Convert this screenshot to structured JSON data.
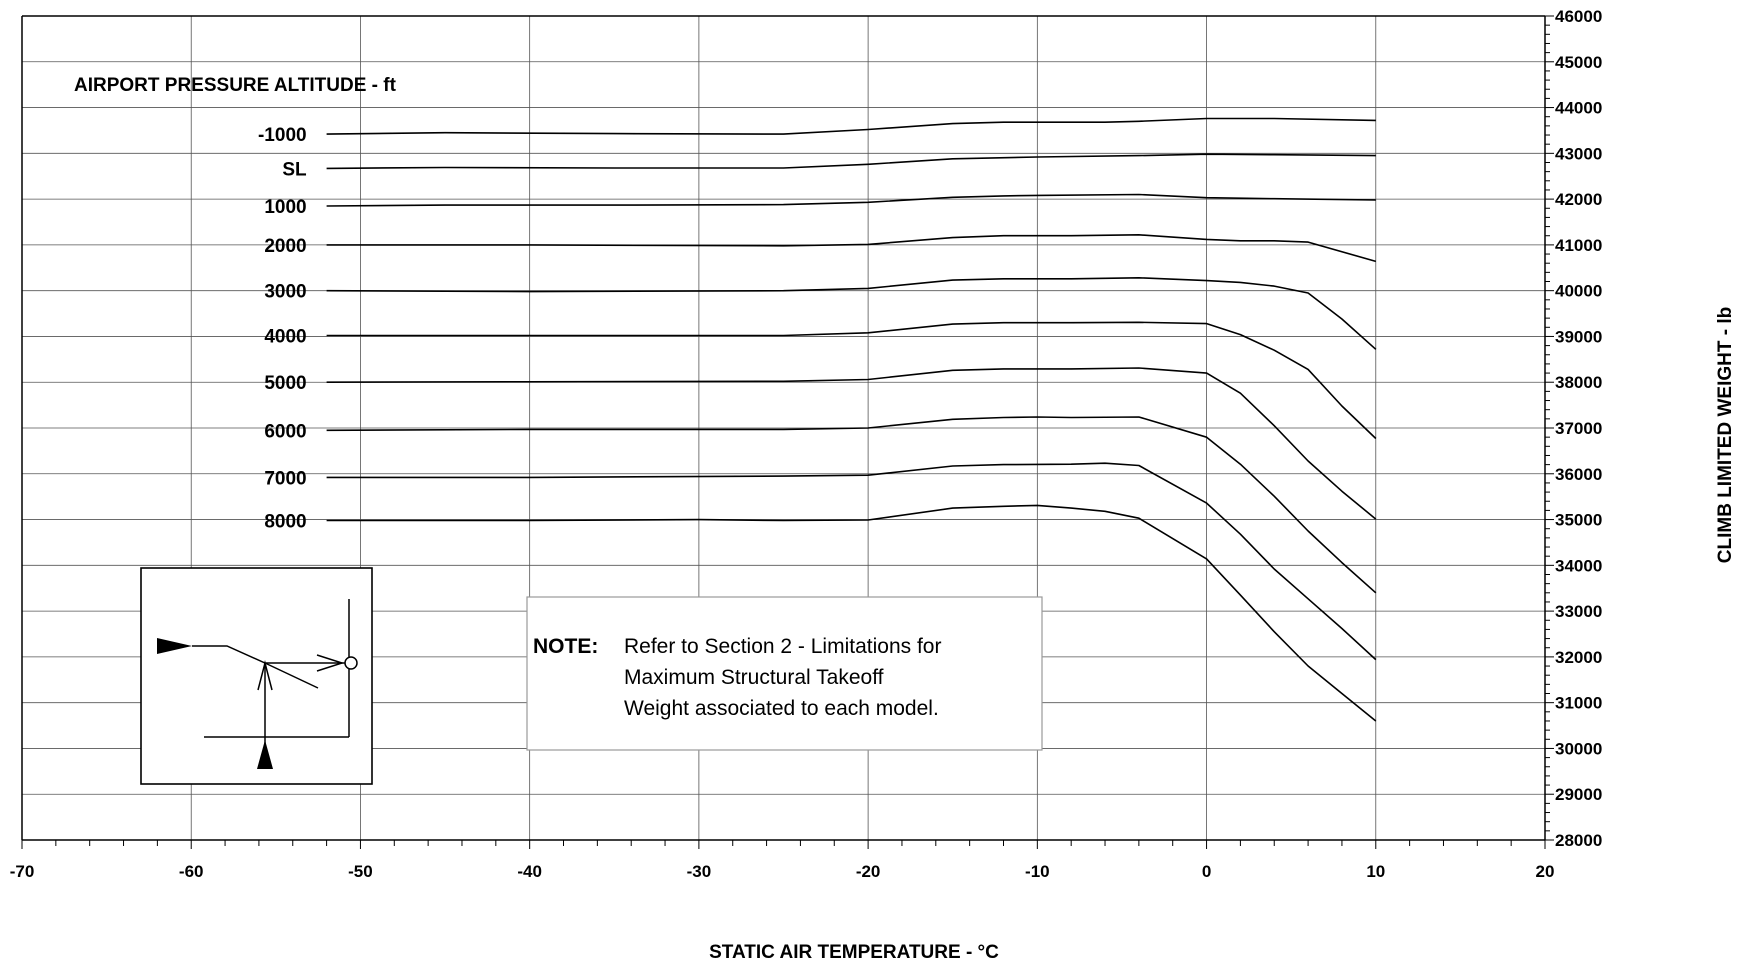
{
  "chart_data": {
    "type": "line",
    "xlabel": "STATIC AIR TEMPERATURE - °C",
    "ylabel": "CLIMB LIMITED WEIGHT - lb",
    "xlim": [
      -70,
      20
    ],
    "ylim": [
      28000,
      46000
    ],
    "x_ticks": [
      -70,
      -60,
      -50,
      -40,
      -30,
      -20,
      -10,
      0,
      10,
      20
    ],
    "y_ticks": [
      28000,
      29000,
      30000,
      31000,
      32000,
      33000,
      34000,
      35000,
      36000,
      37000,
      38000,
      39000,
      40000,
      41000,
      42000,
      43000,
      44000,
      45000,
      46000
    ],
    "grid": true,
    "legend_title": "AIRPORT PRESSURE ALTITUDE - ft",
    "series": [
      {
        "name": "-1000",
        "points": [
          [
            -52,
            43420
          ],
          [
            -45,
            43450
          ],
          [
            -35,
            43430
          ],
          [
            -25,
            43420
          ],
          [
            -20,
            43520
          ],
          [
            -15,
            43650
          ],
          [
            -12,
            43680
          ],
          [
            -6,
            43680
          ],
          [
            -4,
            43700
          ],
          [
            0,
            43760
          ],
          [
            4,
            43760
          ],
          [
            10,
            43720
          ]
        ]
      },
      {
        "name": "SL",
        "points": [
          [
            -52,
            42670
          ],
          [
            -45,
            42690
          ],
          [
            -35,
            42680
          ],
          [
            -25,
            42680
          ],
          [
            -20,
            42760
          ],
          [
            -15,
            42880
          ],
          [
            -10,
            42920
          ],
          [
            -4,
            42950
          ],
          [
            0,
            42980
          ],
          [
            4,
            42970
          ],
          [
            10,
            42950
          ]
        ]
      },
      {
        "name": "1000",
        "points": [
          [
            -52,
            41850
          ],
          [
            -45,
            41870
          ],
          [
            -35,
            41870
          ],
          [
            -25,
            41880
          ],
          [
            -20,
            41930
          ],
          [
            -15,
            42040
          ],
          [
            -12,
            42070
          ],
          [
            -10,
            42080
          ],
          [
            -4,
            42100
          ],
          [
            0,
            42030
          ],
          [
            4,
            42010
          ],
          [
            10,
            41980
          ]
        ]
      },
      {
        "name": "2000",
        "points": [
          [
            -52,
            41000
          ],
          [
            -40,
            41000
          ],
          [
            -25,
            40980
          ],
          [
            -20,
            41010
          ],
          [
            -15,
            41160
          ],
          [
            -12,
            41200
          ],
          [
            -8,
            41200
          ],
          [
            -4,
            41220
          ],
          [
            0,
            41120
          ],
          [
            2,
            41090
          ],
          [
            4,
            41090
          ],
          [
            6,
            41060
          ],
          [
            10,
            40640
          ]
        ]
      },
      {
        "name": "3000",
        "points": [
          [
            -52,
            40000
          ],
          [
            -40,
            39980
          ],
          [
            -25,
            40000
          ],
          [
            -20,
            40050
          ],
          [
            -15,
            40230
          ],
          [
            -12,
            40260
          ],
          [
            -8,
            40260
          ],
          [
            -4,
            40280
          ],
          [
            0,
            40220
          ],
          [
            2,
            40180
          ],
          [
            4,
            40100
          ],
          [
            6,
            39950
          ],
          [
            8,
            39380
          ],
          [
            10,
            38720
          ]
        ]
      },
      {
        "name": "4000",
        "points": [
          [
            -52,
            39020
          ],
          [
            -40,
            39020
          ],
          [
            -25,
            39020
          ],
          [
            -20,
            39080
          ],
          [
            -15,
            39270
          ],
          [
            -12,
            39300
          ],
          [
            -8,
            39300
          ],
          [
            -4,
            39310
          ],
          [
            0,
            39280
          ],
          [
            2,
            39040
          ],
          [
            4,
            38700
          ],
          [
            6,
            38280
          ],
          [
            8,
            37480
          ],
          [
            10,
            36770
          ]
        ]
      },
      {
        "name": "5000",
        "points": [
          [
            -52,
            38000
          ],
          [
            -40,
            38010
          ],
          [
            -25,
            38020
          ],
          [
            -20,
            38060
          ],
          [
            -15,
            38260
          ],
          [
            -12,
            38290
          ],
          [
            -8,
            38290
          ],
          [
            -4,
            38310
          ],
          [
            0,
            38200
          ],
          [
            2,
            37760
          ],
          [
            4,
            37050
          ],
          [
            6,
            36280
          ],
          [
            8,
            35620
          ],
          [
            10,
            35010
          ]
        ]
      },
      {
        "name": "6000",
        "points": [
          [
            -52,
            36950
          ],
          [
            -40,
            36970
          ],
          [
            -25,
            36970
          ],
          [
            -20,
            37000
          ],
          [
            -15,
            37190
          ],
          [
            -12,
            37230
          ],
          [
            -10,
            37240
          ],
          [
            -8,
            37230
          ],
          [
            -4,
            37240
          ],
          [
            0,
            36800
          ],
          [
            2,
            36210
          ],
          [
            4,
            35510
          ],
          [
            6,
            34750
          ],
          [
            8,
            34060
          ],
          [
            10,
            33400
          ]
        ]
      },
      {
        "name": "7000",
        "points": [
          [
            -52,
            35920
          ],
          [
            -40,
            35920
          ],
          [
            -25,
            35950
          ],
          [
            -20,
            35970
          ],
          [
            -15,
            36170
          ],
          [
            -12,
            36200
          ],
          [
            -8,
            36210
          ],
          [
            -6,
            36230
          ],
          [
            -4,
            36180
          ],
          [
            0,
            35360
          ],
          [
            2,
            34680
          ],
          [
            4,
            33920
          ],
          [
            6,
            33270
          ],
          [
            8,
            32620
          ],
          [
            10,
            31940
          ]
        ]
      },
      {
        "name": "8000",
        "points": [
          [
            -52,
            34980
          ],
          [
            -40,
            34980
          ],
          [
            -30,
            35000
          ],
          [
            -25,
            34980
          ],
          [
            -20,
            34990
          ],
          [
            -15,
            35250
          ],
          [
            -12,
            35290
          ],
          [
            -10,
            35310
          ],
          [
            -8,
            35250
          ],
          [
            -6,
            35180
          ],
          [
            -4,
            35030
          ],
          [
            0,
            34140
          ],
          [
            2,
            33350
          ],
          [
            4,
            32550
          ],
          [
            6,
            31800
          ],
          [
            8,
            31200
          ],
          [
            10,
            30600
          ]
        ]
      }
    ]
  },
  "note": {
    "label": "NOTE:",
    "lines": [
      "Refer to Section 2 - Limitations for",
      "Maximum Structural Takeoff",
      "Weight associated to each model."
    ]
  }
}
